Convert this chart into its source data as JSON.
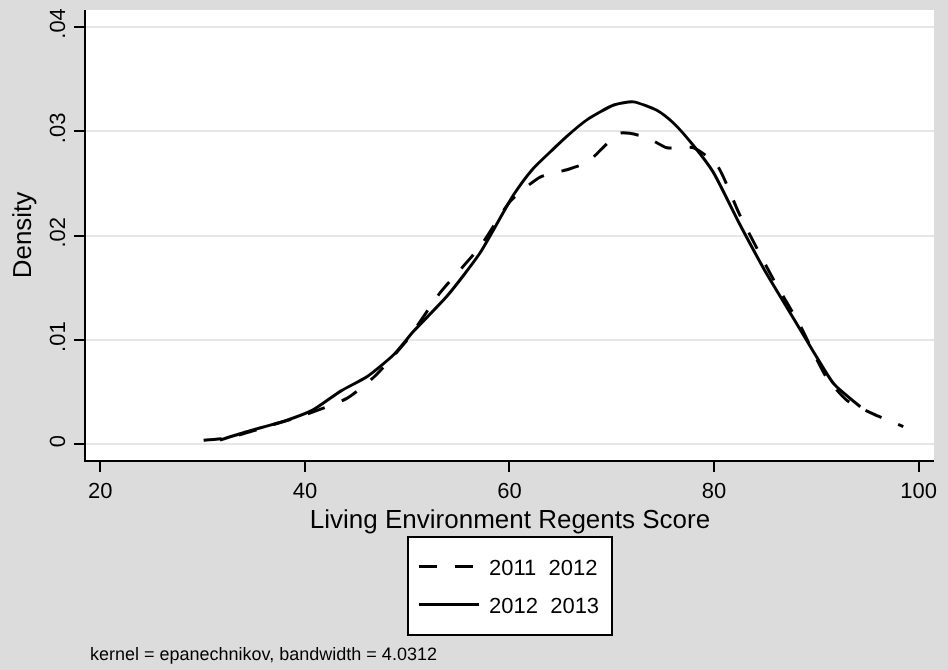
{
  "chart_data": {
    "type": "line",
    "xlabel": "Living Environment Regents Score",
    "ylabel": "Density",
    "xlim": [
      18.6,
      101.5
    ],
    "xticks": [
      20,
      40,
      60,
      80,
      100
    ],
    "ylim": [
      -0.0015,
      0.0416
    ],
    "yticks": [
      0,
      {
        "value": 0.01,
        "label": ".01"
      },
      {
        "value": 0.02,
        "label": ".02"
      },
      {
        "value": 0.03,
        "label": ".03"
      },
      {
        "value": 0.04,
        "label": ".04"
      }
    ],
    "grid": "y",
    "legend": "bottom",
    "marker": "none",
    "annotations": [
      "kernel = epanechnikov, bandwidth = 4.0312"
    ],
    "series": [
      {
        "name": "2011  2012",
        "color": "#000000",
        "line_style": "dashed",
        "x": [
          30.1,
          32.4,
          36.3,
          40.2,
          44.1,
          46.7,
          50,
          53.2,
          57.1,
          60.1,
          63,
          65.6,
          67.6,
          70.8,
          73.4,
          75.4,
          78,
          80.3,
          82.5,
          85.8,
          88.4,
          91,
          93,
          95.6,
          98.5
        ],
        "values": [
          0.0004,
          0.0006,
          0.0017,
          0.0029,
          0.0044,
          0.0064,
          0.01,
          0.0145,
          0.0189,
          0.0233,
          0.0256,
          0.0263,
          0.027,
          0.0298,
          0.0294,
          0.0284,
          0.0284,
          0.0267,
          0.022,
          0.0158,
          0.0114,
          0.0064,
          0.0042,
          0.0029,
          0.0017
        ]
      },
      {
        "name": "2012  2013",
        "color": "#000000",
        "line_style": "solid",
        "x": [
          31.7,
          34.3,
          38.2,
          40.8,
          43.5,
          46.1,
          48.7,
          50.6,
          53.9,
          57.1,
          60.4,
          62.3,
          64.3,
          65.6,
          67.6,
          70.2,
          72.1,
          74.4,
          76,
          78,
          79.9,
          82.5,
          85.1,
          87.8,
          89.7,
          91.7,
          94.3
        ],
        "values": [
          0.0004,
          0.0012,
          0.0023,
          0.0033,
          0.0051,
          0.0065,
          0.0086,
          0.0108,
          0.0142,
          0.0183,
          0.0239,
          0.0264,
          0.0283,
          0.0295,
          0.0311,
          0.0325,
          0.0328,
          0.032,
          0.0308,
          0.0286,
          0.0261,
          0.0211,
          0.0164,
          0.012,
          0.0089,
          0.0058,
          0.0036
        ]
      }
    ]
  }
}
